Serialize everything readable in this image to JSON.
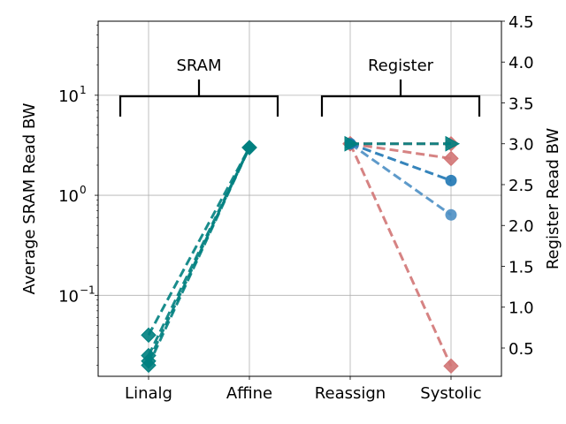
{
  "chart_data": {
    "type": "line",
    "categories": [
      "Linalg",
      "Affine",
      "Reassign",
      "Systolic"
    ],
    "left_axis": {
      "label": "Average SRAM Read BW",
      "scale": "log",
      "ylim": [
        0.0155,
        55
      ],
      "ticks": [
        {
          "value": 0.1,
          "base": "10",
          "exp": "−1"
        },
        {
          "value": 1,
          "base": "10",
          "exp": "0"
        },
        {
          "value": 10,
          "base": "10",
          "exp": "1"
        }
      ]
    },
    "right_axis": {
      "label": "Register Read BW",
      "scale": "linear",
      "ylim": [
        0.154,
        4.5
      ],
      "ticks": [
        "0.5",
        "1.0",
        "1.5",
        "2.0",
        "2.5",
        "3.0",
        "3.5",
        "4.0",
        "4.5"
      ]
    },
    "grid": true,
    "groups": [
      {
        "label": "SRAM",
        "from": "Linalg",
        "to": "Affine"
      },
      {
        "label": "Register",
        "from": "Reassign",
        "to": "Systolic"
      }
    ],
    "series": [
      {
        "color": "#008080",
        "marker": "diamond",
        "axis": "left",
        "x": [
          "Linalg",
          "Affine"
        ],
        "values": [
          0.04,
          3.0
        ]
      },
      {
        "color": "#008080",
        "marker": "diamond",
        "axis": "left",
        "x": [
          "Linalg",
          "Affine"
        ],
        "values": [
          0.025,
          3.0
        ]
      },
      {
        "color": "#008080",
        "marker": "diamond",
        "axis": "left",
        "x": [
          "Linalg",
          "Affine"
        ],
        "values": [
          0.022,
          3.0
        ]
      },
      {
        "color": "#008080",
        "marker": "diamond",
        "axis": "left",
        "x": [
          "Linalg",
          "Affine"
        ],
        "values": [
          0.02,
          3.0
        ]
      },
      {
        "color": "#d27575",
        "marker": "diamond",
        "axis": "right",
        "x": [
          "Reassign",
          "Systolic"
        ],
        "values": [
          3.0,
          3.0
        ]
      },
      {
        "color": "#d27575",
        "marker": "diamond",
        "axis": "right",
        "x": [
          "Reassign",
          "Systolic"
        ],
        "values": [
          3.0,
          2.82
        ]
      },
      {
        "color": "#d27575",
        "marker": "diamond",
        "axis": "right",
        "x": [
          "Reassign",
          "Systolic"
        ],
        "values": [
          3.0,
          0.28
        ]
      },
      {
        "color": "#4c8fc4",
        "marker": "circle",
        "axis": "right",
        "x": [
          "Reassign",
          "Systolic"
        ],
        "values": [
          3.0,
          2.13
        ]
      },
      {
        "color": "#1f77b4",
        "marker": "circle",
        "axis": "right",
        "x": [
          "Reassign",
          "Systolic"
        ],
        "values": [
          3.0,
          2.55
        ]
      },
      {
        "color": "#008080",
        "marker": "triangle-right",
        "axis": "right",
        "x": [
          "Reassign",
          "Systolic"
        ],
        "values": [
          3.0,
          3.0
        ]
      }
    ]
  }
}
